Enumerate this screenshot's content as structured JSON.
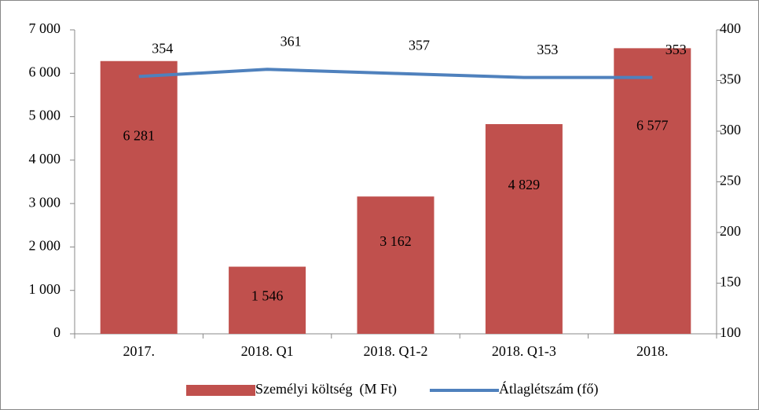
{
  "chart_data": {
    "type": "bar",
    "categories": [
      "2017.",
      "2018. Q1",
      "2018. Q1-2",
      "2018. Q1-3",
      "2018."
    ],
    "series": [
      {
        "name": "Személyi költség  (M Ft)",
        "type": "bar",
        "color": "#c0504d",
        "values": [
          6281,
          1546,
          3162,
          4829,
          6577
        ],
        "value_labels": [
          "6 281",
          "1 546",
          "3 162",
          "4 829",
          "6 577"
        ]
      },
      {
        "name": "Átlaglétszám (fő)",
        "type": "line",
        "axis": "y2",
        "color": "#4f81bd",
        "values": [
          354,
          361,
          357,
          353,
          353
        ]
      }
    ],
    "ylim": [
      0,
      7000
    ],
    "yticks": [
      0,
      {
        "value": 1000,
        "label": "1 000"
      },
      {
        "value": 2000,
        "label": "2 000"
      },
      {
        "value": 3000,
        "label": "3 000"
      },
      {
        "value": 4000,
        "label": "4 000"
      },
      {
        "value": 5000,
        "label": "5 000"
      },
      {
        "value": 6000,
        "label": "6 000"
      },
      {
        "value": 7000,
        "label": "7 000"
      }
    ],
    "y2lim": [
      100,
      400
    ],
    "y2ticks": [
      100,
      150,
      200,
      250,
      300,
      350,
      400
    ],
    "legend": "bottom"
  }
}
